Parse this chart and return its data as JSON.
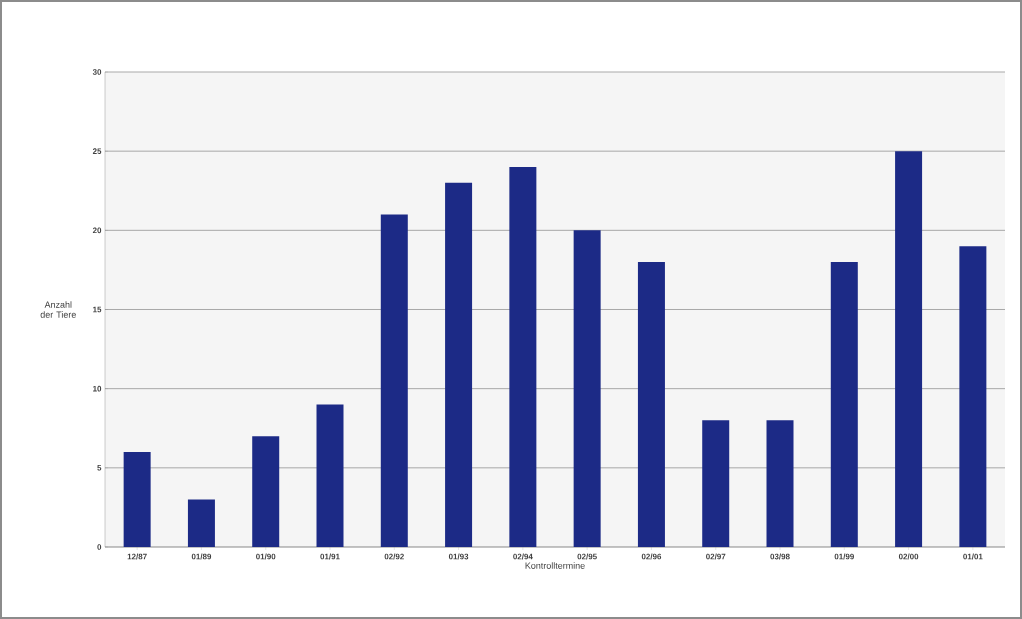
{
  "chart_data": {
    "type": "bar",
    "xlabel": "Kontrolltermine",
    "ylabel": "Anzahl der Tiere",
    "categories": [
      "12/87",
      "01/89",
      "01/90",
      "01/91",
      "02/92",
      "01/93",
      "02/94",
      "02/95",
      "02/96",
      "02/97",
      "03/98",
      "01/99",
      "02/00",
      "01/01"
    ],
    "values": [
      6,
      3,
      7,
      9,
      21,
      23,
      24,
      20,
      18,
      8,
      8,
      18,
      25,
      19
    ],
    "color": "#1c2a86",
    "ylim": [
      0,
      30
    ],
    "yticks": [
      0,
      5,
      10,
      15,
      20,
      25,
      30
    ],
    "grid": "y"
  }
}
